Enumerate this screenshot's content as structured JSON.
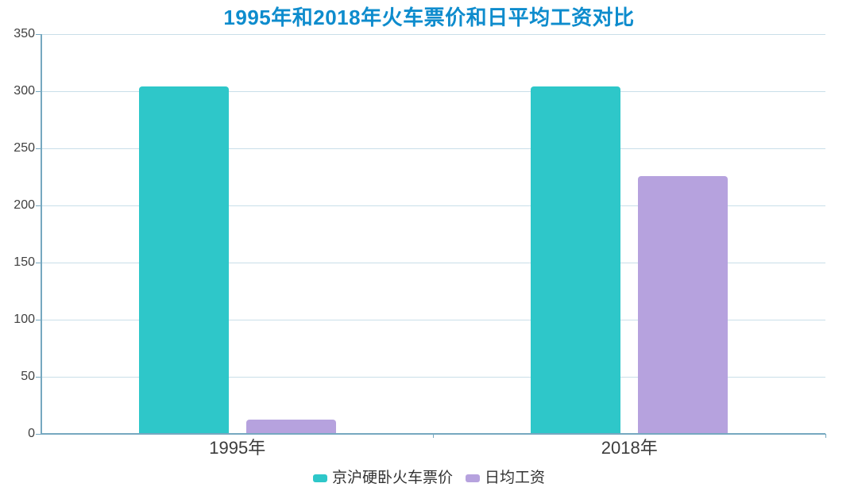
{
  "chart_data": {
    "type": "bar",
    "title": "1995年和2018年火车票价和日平均工资对比",
    "categories": [
      "1995年",
      "2018年"
    ],
    "series": [
      {
        "name": "京沪硬卧火车票价",
        "color": "#2ec7c9",
        "values": [
          304.5,
          304.5
        ]
      },
      {
        "name": "日均工资",
        "color": "#b6a2de",
        "values": [
          12.6,
          226
        ]
      }
    ],
    "xlabel": "",
    "ylabel": "",
    "ylim": [
      0,
      350
    ],
    "ytick_interval": 50,
    "y_tick_labels": [
      "0",
      "50",
      "100",
      "150",
      "200",
      "250",
      "300",
      "350"
    ],
    "grid": true,
    "legend_position": "bottom",
    "colors": {
      "title": "#0e8ccd",
      "axis_line": "#76a8c0",
      "gridline": "#c9dfe9",
      "axis_label": "#404040",
      "legend_text": "#333333",
      "background": "#ffffff"
    }
  }
}
